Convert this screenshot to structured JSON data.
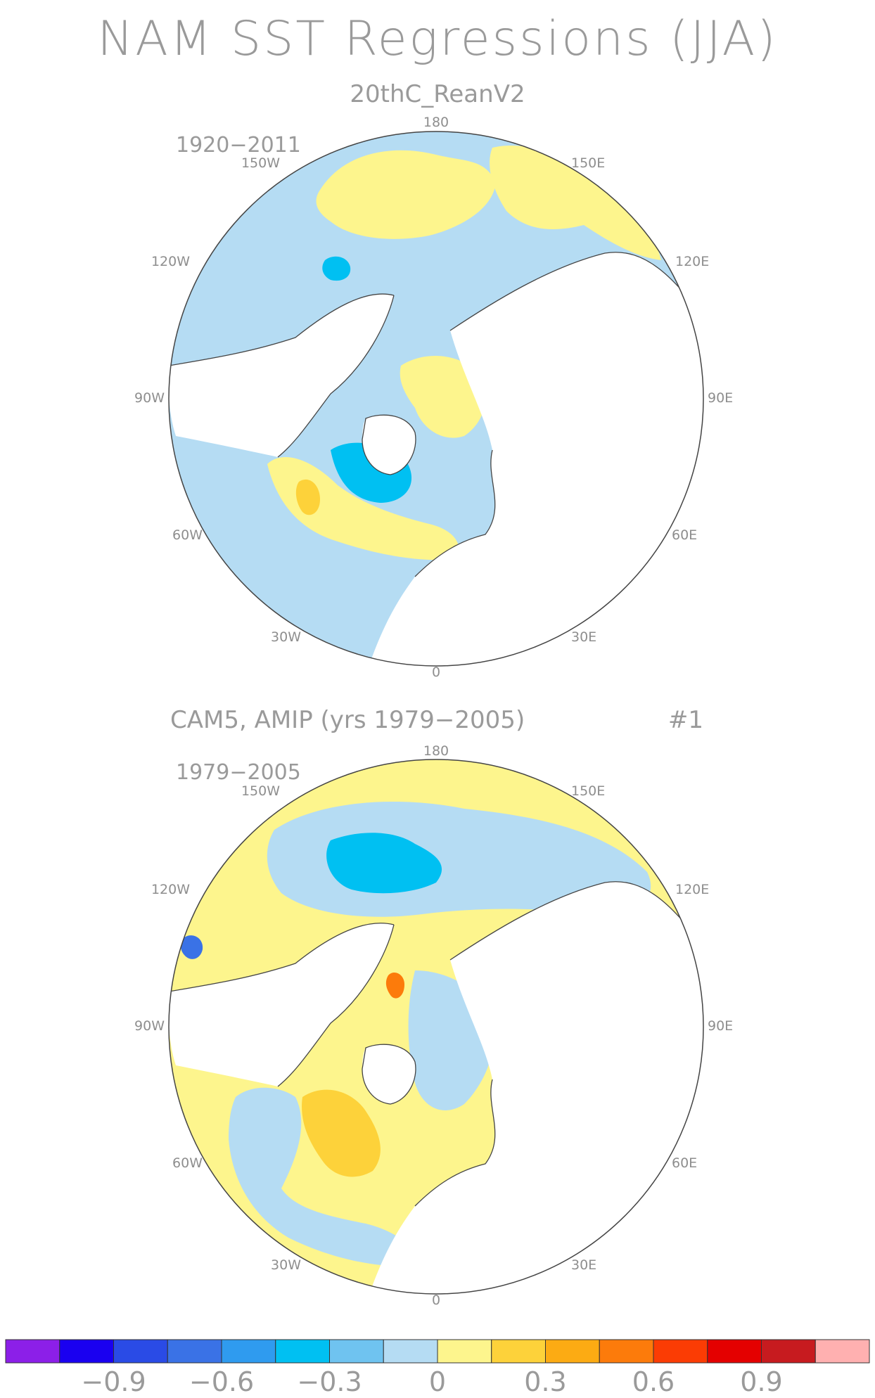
{
  "figure": {
    "title": "NAM SST Regressions (JJA)",
    "colors": {
      "text": "#9a9a9a",
      "outline": "#444444",
      "land": "#ffffff"
    }
  },
  "panels": [
    {
      "subtitle": "20thC_ReanV2",
      "period": "1920−2011",
      "run_tag": "",
      "background_level": "-0.15",
      "patches": [
        {
          "level": "0.15",
          "shape": "blob",
          "where": "north-pacific-center"
        },
        {
          "level": "0.15",
          "shape": "blob",
          "where": "north-pacific-east"
        },
        {
          "level": "0.15",
          "shape": "blob",
          "where": "north-atlantic-band"
        },
        {
          "level": "0.15",
          "shape": "blob",
          "where": "barents"
        },
        {
          "level": "-0.45",
          "shape": "blob",
          "where": "labrador"
        },
        {
          "level": "-0.45",
          "shape": "blob",
          "where": "pacific-small"
        },
        {
          "level": "0.45",
          "shape": "blob",
          "where": "atlantic-core"
        }
      ]
    },
    {
      "subtitle": "CAM5, AMIP (yrs 1979−2005)",
      "period": "1979−2005",
      "run_tag": "#1",
      "background_level": "0.15",
      "patches": [
        {
          "level": "-0.15",
          "shape": "blob",
          "where": "north-pacific-band"
        },
        {
          "level": "-0.45",
          "shape": "blob",
          "where": "north-pacific-core"
        },
        {
          "level": "-0.15",
          "shape": "blob",
          "where": "atlantic-ring"
        },
        {
          "level": "0.45",
          "shape": "blob",
          "where": "atlantic-core"
        },
        {
          "level": "0.75",
          "shape": "blob",
          "where": "greenland-coast"
        },
        {
          "level": "-0.15",
          "shape": "blob",
          "where": "arctic"
        },
        {
          "level": "-0.75",
          "shape": "blob",
          "where": "gulf-alaska"
        }
      ]
    }
  ],
  "longitude_labels": {
    "top": "180",
    "bottom": "0",
    "upper_left": "150W",
    "upper_right": "150E",
    "mid_upper_left": "120W",
    "mid_upper_right": "120E",
    "left": "90W",
    "right": "90E",
    "mid_lower_left": "60W",
    "mid_lower_right": "60E",
    "lower_left": "30W",
    "lower_right": "30E"
  },
  "colorbar": {
    "colors": [
      "#8c1fe8",
      "#1a00f0",
      "#2a4be6",
      "#3a72e6",
      "#2f9bef",
      "#00c0f2",
      "#6fc3f0",
      "#b5dcf3",
      "#fdf58d",
      "#fdd23a",
      "#fcab13",
      "#fc7b0b",
      "#fb3c04",
      "#e40000",
      "#c71b1f",
      "#ffb0b0"
    ],
    "labels": [
      {
        "text": "−0.9",
        "boundary": 2
      },
      {
        "text": "−0.6",
        "boundary": 4
      },
      {
        "text": "−0.3",
        "boundary": 6
      },
      {
        "text": "0",
        "boundary": 8
      },
      {
        "text": "0.3",
        "boundary": 10
      },
      {
        "text": "0.6",
        "boundary": 12
      },
      {
        "text": "0.9",
        "boundary": 14
      }
    ]
  }
}
